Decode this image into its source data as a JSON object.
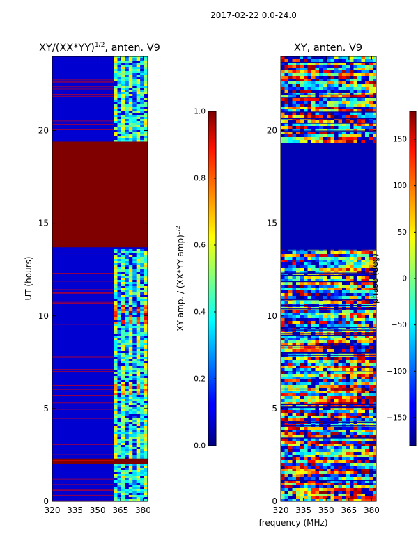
{
  "figure": {
    "suptitle": "2017-02-22 0.0-24.0",
    "shared_xlabel": "frequency (MHz)"
  },
  "chart_data": [
    {
      "type": "heatmap",
      "title": "XY/(XX*YY)$^{1/2}$, anten. V9",
      "title_plain": "XY/(XX*YY)",
      "title_sup": "1/2",
      "title_suffix": ", anten. V9",
      "xlabel": "frequency (MHz)",
      "ylabel": "UT (hours)",
      "xlim": [
        320,
        383
      ],
      "ylim": [
        0,
        24
      ],
      "xticks": [
        320,
        335,
        350,
        365,
        380
      ],
      "yticks": [
        0,
        5,
        10,
        15,
        20
      ],
      "colorbar": {
        "label": "XY amp. / (XX*YY amp)$^{1/2}$",
        "label_plain": "XY amp. / (XX*YY amp)",
        "label_sup": "1/2",
        "range": [
          0.0,
          1.0
        ],
        "ticks": [
          "0.0",
          "0.2",
          "0.4",
          "0.6",
          "0.8",
          "1.0"
        ],
        "tick_values": [
          0.0,
          0.2,
          0.4,
          0.6,
          0.8,
          1.0
        ],
        "colormap": "jet"
      },
      "regions": [
        {
          "ut": [
            19.4,
            24.0
          ],
          "freq": [
            320,
            360
          ],
          "value": 0.08
        },
        {
          "ut": [
            13.7,
            19.4
          ],
          "freq": [
            320,
            383
          ],
          "value": 1.0
        },
        {
          "ut": [
            2.0,
            2.3
          ],
          "freq": [
            320,
            383
          ],
          "value": 0.95
        },
        {
          "ut": [
            0.0,
            13.7
          ],
          "freq": [
            320,
            360
          ],
          "value": 0.08
        }
      ],
      "features": [
        {
          "ut": [
            9.6,
            10.6
          ],
          "freq": [
            361,
            381
          ],
          "value": 0.85
        },
        {
          "ut": [
            5.8,
            6.4
          ],
          "freq": [
            361,
            381
          ],
          "value": 0.75
        }
      ]
    },
    {
      "type": "heatmap",
      "title": "XY, anten. V9",
      "xlabel": "frequency (MHz)",
      "ylabel": "",
      "xlim": [
        320,
        383
      ],
      "ylim": [
        0,
        24
      ],
      "xticks": [
        320,
        335,
        350,
        365,
        380
      ],
      "yticks": [
        0,
        5,
        10,
        15,
        20
      ],
      "colorbar": {
        "label": "phase (deg)",
        "range": [
          -180,
          180
        ],
        "ticks": [
          "−150",
          "−100",
          "−50",
          "0",
          "50",
          "100",
          "150"
        ],
        "tick_values": [
          -150,
          -100,
          -50,
          0,
          50,
          100,
          150
        ],
        "colormap": "jet"
      },
      "regions": [
        {
          "ut": [
            13.7,
            19.4
          ],
          "freq": [
            320,
            383
          ],
          "value": -180
        }
      ]
    }
  ]
}
